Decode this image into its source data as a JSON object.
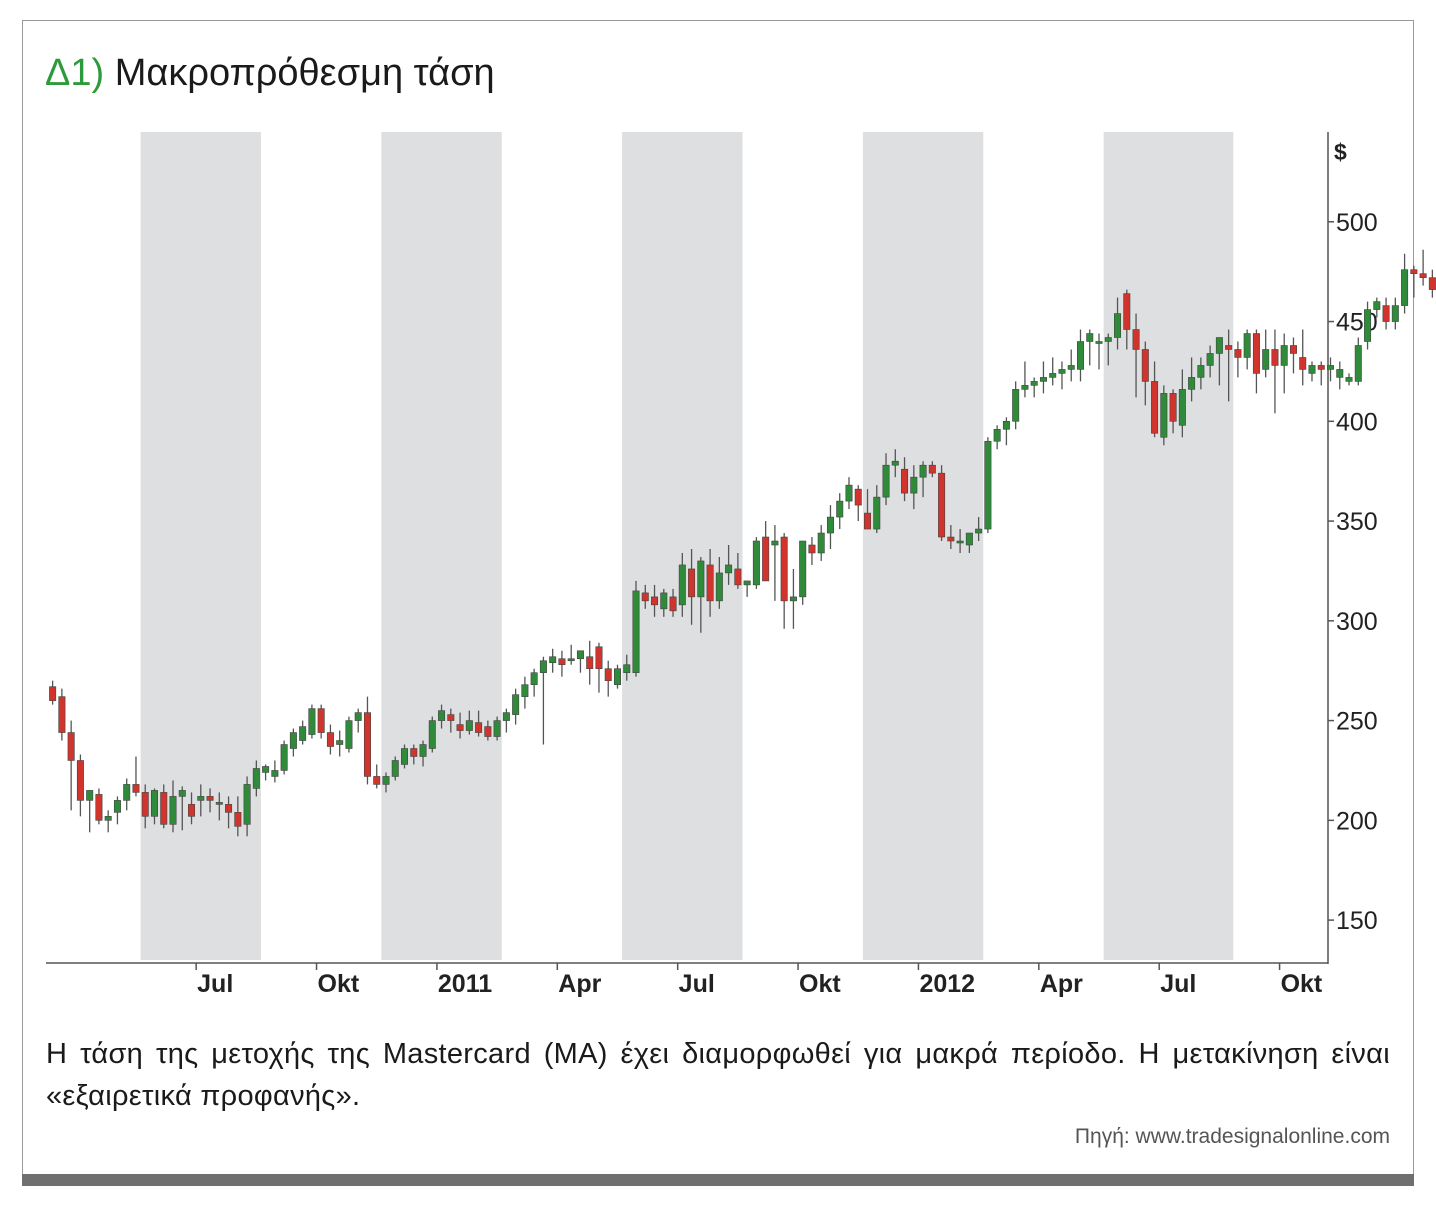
{
  "title": {
    "number": "Δ1)",
    "text": "Μακροπρόθεσμη τάση"
  },
  "caption": "Η τάση της μετοχής της Mastercard (MA) έχει διαμορφωθεί για μακρά περίοδο. Η μετακίνηση είναι «εξαιρετικά προφανής».",
  "source": "Πηγή: www.tradesignalonline.com",
  "colors": {
    "up": "#2f8a3a",
    "down": "#d0342c",
    "shade": "#dedfe1",
    "title_number": "#2e9a3c"
  },
  "chart_data": {
    "type": "candlestick",
    "ylabel": "$",
    "ylim": [
      130,
      545
    ],
    "yticks": [
      150,
      200,
      250,
      300,
      350,
      400,
      450,
      500
    ],
    "x_tick_labels": [
      "Jul",
      "Okt",
      "2011",
      "Apr",
      "Jul",
      "Okt",
      "2012",
      "Apr",
      "Jul",
      "Okt"
    ],
    "x_tick_weeks": [
      16,
      29,
      42,
      55,
      68,
      81,
      94,
      107,
      120,
      133
    ],
    "shaded_periods_weeks": [
      [
        10,
        23
      ],
      [
        36,
        49
      ],
      [
        62,
        75
      ],
      [
        88,
        101
      ],
      [
        114,
        128
      ]
    ],
    "candles": [
      [
        267,
        270,
        258,
        260
      ],
      [
        262,
        266,
        240,
        244
      ],
      [
        244,
        250,
        205,
        230
      ],
      [
        230,
        233,
        202,
        210
      ],
      [
        210,
        215,
        194,
        215
      ],
      [
        213,
        216,
        198,
        200
      ],
      [
        200,
        205,
        194,
        202
      ],
      [
        204,
        212,
        198,
        210
      ],
      [
        210,
        221,
        205,
        218
      ],
      [
        218,
        232,
        212,
        214
      ],
      [
        214,
        218,
        196,
        202
      ],
      [
        202,
        216,
        198,
        215
      ],
      [
        214,
        218,
        196,
        198
      ],
      [
        198,
        220,
        194,
        212
      ],
      [
        212,
        217,
        195,
        215
      ],
      [
        208,
        214,
        198,
        202
      ],
      [
        210,
        218,
        202,
        212
      ],
      [
        212,
        216,
        204,
        210
      ],
      [
        208,
        214,
        200,
        209
      ],
      [
        208,
        212,
        196,
        204
      ],
      [
        204,
        212,
        192,
        197
      ],
      [
        198,
        222,
        192,
        218
      ],
      [
        216,
        230,
        212,
        226
      ],
      [
        224,
        228,
        220,
        227
      ],
      [
        222,
        230,
        219,
        225
      ],
      [
        225,
        240,
        223,
        238
      ],
      [
        236,
        246,
        232,
        244
      ],
      [
        240,
        250,
        238,
        247
      ],
      [
        243,
        258,
        241,
        256
      ],
      [
        256,
        258,
        241,
        244
      ],
      [
        244,
        248,
        233,
        237
      ],
      [
        238,
        245,
        232,
        240
      ],
      [
        236,
        252,
        234,
        250
      ],
      [
        250,
        256,
        244,
        254
      ],
      [
        254,
        262,
        218,
        222
      ],
      [
        222,
        228,
        216,
        218
      ],
      [
        218,
        224,
        214,
        222
      ],
      [
        222,
        232,
        220,
        230
      ],
      [
        228,
        238,
        226,
        236
      ],
      [
        236,
        238,
        228,
        232
      ],
      [
        232,
        240,
        227,
        238
      ],
      [
        236,
        252,
        234,
        250
      ],
      [
        250,
        258,
        246,
        255
      ],
      [
        253,
        256,
        244,
        250
      ],
      [
        248,
        254,
        241,
        245
      ],
      [
        245,
        255,
        243,
        250
      ],
      [
        249,
        255,
        242,
        244
      ],
      [
        247,
        250,
        240,
        242
      ],
      [
        242,
        252,
        240,
        250
      ],
      [
        250,
        256,
        244,
        254
      ],
      [
        253,
        266,
        248,
        263
      ],
      [
        262,
        272,
        256,
        268
      ],
      [
        268,
        276,
        262,
        274
      ],
      [
        274,
        282,
        238,
        280
      ],
      [
        279,
        286,
        274,
        282
      ],
      [
        281,
        285,
        272,
        278
      ],
      [
        280,
        288,
        278,
        281
      ],
      [
        281,
        285,
        274,
        285
      ],
      [
        282,
        290,
        268,
        276
      ],
      [
        287,
        289,
        264,
        276
      ],
      [
        276,
        280,
        262,
        270
      ],
      [
        268,
        278,
        266,
        276
      ],
      [
        274,
        283,
        270,
        278
      ],
      [
        274,
        320,
        272,
        315
      ],
      [
        314,
        318,
        306,
        310
      ],
      [
        312,
        318,
        302,
        308
      ],
      [
        306,
        316,
        302,
        314
      ],
      [
        312,
        316,
        302,
        305
      ],
      [
        308,
        334,
        302,
        328
      ],
      [
        326,
        336,
        298,
        312
      ],
      [
        312,
        332,
        294,
        330
      ],
      [
        328,
        336,
        302,
        310
      ],
      [
        310,
        332,
        306,
        324
      ],
      [
        324,
        338,
        318,
        328
      ],
      [
        326,
        334,
        316,
        318
      ],
      [
        318,
        320,
        312,
        320
      ],
      [
        318,
        342,
        316,
        340
      ],
      [
        342,
        350,
        322,
        320
      ],
      [
        338,
        348,
        310,
        340
      ],
      [
        342,
        344,
        296,
        310
      ],
      [
        310,
        326,
        296,
        312
      ],
      [
        312,
        340,
        308,
        340
      ],
      [
        338,
        342,
        328,
        334
      ],
      [
        334,
        348,
        330,
        344
      ],
      [
        344,
        358,
        336,
        352
      ],
      [
        352,
        364,
        346,
        360
      ],
      [
        360,
        372,
        356,
        368
      ],
      [
        366,
        368,
        350,
        358
      ],
      [
        354,
        366,
        346,
        346
      ],
      [
        346,
        368,
        344,
        362
      ],
      [
        362,
        384,
        358,
        378
      ],
      [
        378,
        386,
        372,
        380
      ],
      [
        376,
        382,
        360,
        364
      ],
      [
        364,
        378,
        356,
        372
      ],
      [
        372,
        380,
        362,
        378
      ],
      [
        378,
        380,
        372,
        374
      ],
      [
        374,
        378,
        340,
        342
      ],
      [
        342,
        348,
        336,
        340
      ],
      [
        340,
        346,
        334,
        340
      ],
      [
        338,
        344,
        334,
        344
      ],
      [
        344,
        352,
        340,
        346
      ],
      [
        346,
        392,
        344,
        390
      ],
      [
        390,
        398,
        386,
        396
      ],
      [
        396,
        402,
        388,
        400
      ],
      [
        400,
        420,
        396,
        416
      ],
      [
        416,
        430,
        412,
        418
      ],
      [
        418,
        422,
        412,
        420
      ],
      [
        420,
        430,
        414,
        422
      ],
      [
        422,
        432,
        418,
        424
      ],
      [
        424,
        430,
        416,
        426
      ],
      [
        426,
        436,
        420,
        428
      ],
      [
        426,
        446,
        420,
        440
      ],
      [
        440,
        446,
        428,
        444
      ],
      [
        440,
        444,
        426,
        440
      ],
      [
        440,
        444,
        428,
        442
      ],
      [
        442,
        462,
        436,
        454
      ],
      [
        464,
        466,
        436,
        446
      ],
      [
        446,
        454,
        412,
        436
      ],
      [
        436,
        440,
        408,
        420
      ],
      [
        420,
        430,
        392,
        394
      ],
      [
        392,
        418,
        388,
        414
      ],
      [
        414,
        416,
        394,
        400
      ],
      [
        398,
        426,
        392,
        416
      ],
      [
        416,
        432,
        410,
        422
      ],
      [
        422,
        432,
        416,
        428
      ],
      [
        428,
        438,
        422,
        434
      ],
      [
        434,
        442,
        418,
        442
      ],
      [
        438,
        446,
        410,
        436
      ],
      [
        436,
        440,
        422,
        432
      ],
      [
        432,
        446,
        426,
        444
      ],
      [
        444,
        446,
        414,
        424
      ],
      [
        426,
        446,
        422,
        436
      ],
      [
        436,
        446,
        404,
        428
      ],
      [
        428,
        444,
        414,
        438
      ],
      [
        438,
        442,
        424,
        434
      ],
      [
        432,
        446,
        418,
        426
      ],
      [
        424,
        430,
        420,
        428
      ],
      [
        428,
        430,
        418,
        426
      ],
      [
        426,
        432,
        420,
        428
      ],
      [
        422,
        430,
        416,
        426
      ],
      [
        420,
        424,
        418,
        422
      ],
      [
        420,
        442,
        418,
        438
      ],
      [
        440,
        460,
        436,
        456
      ],
      [
        456,
        462,
        452,
        460
      ],
      [
        458,
        462,
        446,
        450
      ],
      [
        450,
        462,
        446,
        458
      ],
      [
        458,
        484,
        454,
        476
      ],
      [
        476,
        478,
        462,
        474
      ],
      [
        474,
        486,
        468,
        472
      ],
      [
        472,
        476,
        462,
        466
      ]
    ]
  }
}
